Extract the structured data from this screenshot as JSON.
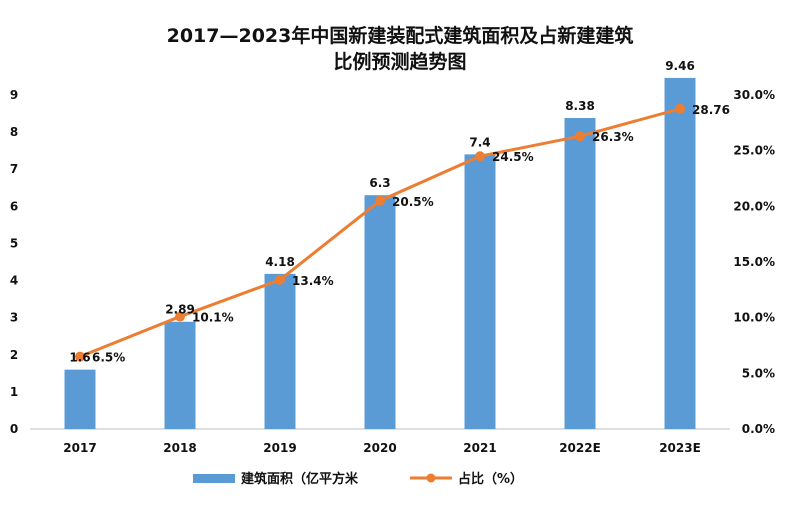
{
  "chart_data": {
    "type": "bar",
    "title_line1": "2017—2023年中国新建装配式建筑面积及占新建建筑",
    "title_line2": "比例预测趋势图",
    "categories": [
      "2017",
      "2018",
      "2019",
      "2020",
      "2021",
      "2022E",
      "2023E"
    ],
    "series": [
      {
        "name": "建筑面积（亿平方米",
        "type": "bar",
        "axis": "left",
        "values": [
          1.6,
          2.89,
          4.18,
          6.3,
          7.4,
          8.38,
          9.46
        ],
        "labels": [
          "1.6",
          "2.89",
          "4.18",
          "6.3",
          "7.4",
          "8.38",
          "9.46"
        ],
        "color": "#5b9bd5"
      },
      {
        "name": "占比（%）",
        "type": "line",
        "axis": "right",
        "values": [
          6.5,
          10.1,
          13.4,
          20.5,
          24.5,
          26.3,
          28.76
        ],
        "labels": [
          "6.5%",
          "10.1%",
          "13.4%",
          "20.5%",
          "24.5%",
          "26.3%",
          "28.76"
        ],
        "color": "#ed7d31"
      }
    ],
    "y_left": {
      "min": 0,
      "max": 9,
      "ticks": [
        "0",
        "1",
        "2",
        "3",
        "4",
        "5",
        "6",
        "7",
        "8",
        "9"
      ]
    },
    "y_right": {
      "min": 0,
      "max": 30,
      "ticks": [
        "0.0%",
        "5.0%",
        "10.0%",
        "15.0%",
        "20.0%",
        "25.0%",
        "30.0%"
      ]
    },
    "legend_position": "bottom",
    "grid": false
  }
}
